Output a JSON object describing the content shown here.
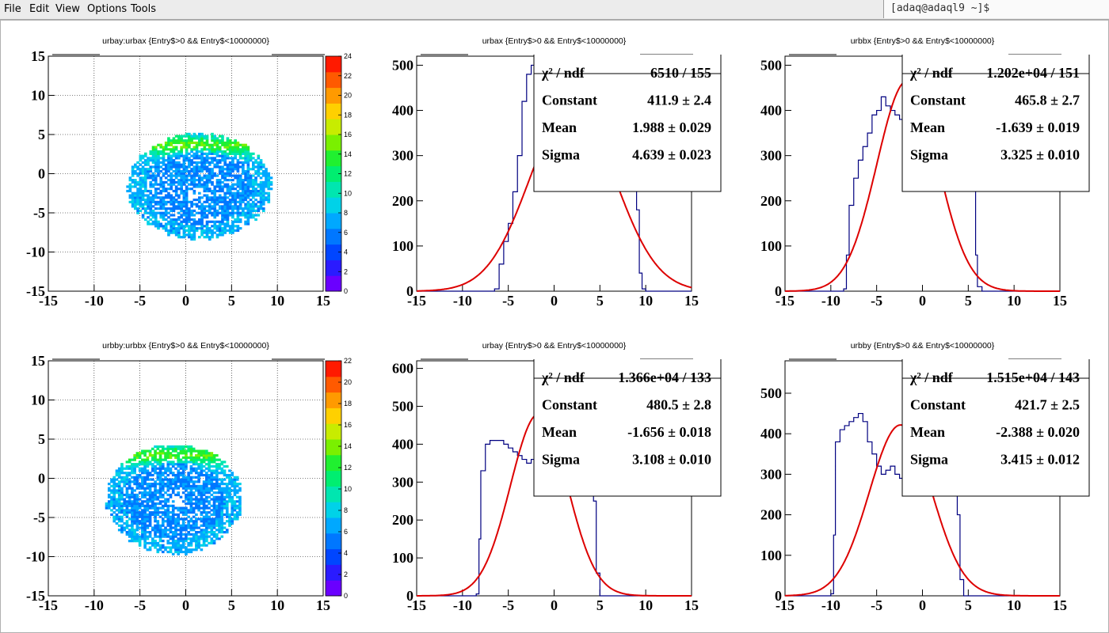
{
  "menubar": {
    "items": [
      {
        "label": "File",
        "accel": "F"
      },
      {
        "label": "Edit",
        "accel": "E"
      },
      {
        "label": "View",
        "accel": "V"
      },
      {
        "label": "Options",
        "accel": "O"
      },
      {
        "label": "Tools",
        "accel": "T"
      }
    ]
  },
  "terminal": {
    "prompt": "[adaq@adaql9 ~]$"
  },
  "colors": {
    "histogram_line": "#000080",
    "fit_line": "#dd0000",
    "palette": [
      "#6a00ff",
      "#2a1bff",
      "#0046ff",
      "#0077ff",
      "#00a8ff",
      "#00d2e8",
      "#00e6b0",
      "#00ee70",
      "#20f030",
      "#7af000",
      "#c8ec00",
      "#ffd000",
      "#ff9a00",
      "#ff5a00",
      "#ff1a00"
    ]
  },
  "chart_data": [
    {
      "type": "heatmap",
      "title": "urbay:urbax {Entry$>0 && Entry$<10000000}",
      "xlim": [
        -15,
        15
      ],
      "ylim": [
        -15,
        15
      ],
      "x_ticks": [
        -15,
        -10,
        -5,
        0,
        5,
        10,
        15
      ],
      "y_ticks": [
        -15,
        -10,
        -5,
        0,
        5,
        10,
        15
      ],
      "z_ticks": [
        0,
        2,
        4,
        6,
        8,
        10,
        12,
        14,
        16,
        18,
        20,
        22,
        24
      ],
      "zlim": [
        0,
        24
      ],
      "blob": {
        "x_range": [
          -6.5,
          9.2
        ],
        "y_range": [
          -8.5,
          5.0
        ],
        "hole_center": [
          1.0,
          -2.5
        ],
        "dense_arc_near_y": 3.5
      },
      "grid": true
    },
    {
      "type": "bar",
      "title": "urbax {Entry$>0 && Entry$<10000000}",
      "xlim": [
        -15,
        15
      ],
      "ylim": [
        0,
        520
      ],
      "x_ticks": [
        -15,
        -10,
        -5,
        0,
        5,
        10,
        15
      ],
      "y_ticks": [
        0,
        100,
        200,
        300,
        400,
        500
      ],
      "histogram": {
        "x": [
          -15,
          -14,
          -13,
          -12,
          -11,
          -10,
          -9,
          -8,
          -7,
          -6.5,
          -6,
          -5.5,
          -5,
          -4.5,
          -4,
          -3.5,
          -3,
          -2.5,
          -2,
          -1.5,
          -1,
          0,
          1,
          2,
          3,
          4,
          5,
          6,
          7,
          8,
          8.5,
          9,
          9.3,
          9.6,
          10,
          11,
          12,
          13,
          14,
          15
        ],
        "y": [
          0,
          0,
          0,
          0,
          0,
          0,
          0,
          0,
          0,
          5,
          60,
          110,
          150,
          220,
          300,
          420,
          480,
          500,
          470,
          430,
          400,
          360,
          330,
          310,
          320,
          330,
          330,
          340,
          340,
          330,
          300,
          180,
          40,
          5,
          0,
          0,
          0,
          0,
          0,
          0
        ]
      },
      "fit": {
        "function": "gaus",
        "constant": 411.9,
        "mean": 1.988,
        "sigma": 4.639
      },
      "stats": [
        {
          "label": "χ² / ndf",
          "value": "6510 / 155"
        },
        {
          "label": "Constant",
          "value": "411.9 ± 2.4"
        },
        {
          "label": "Mean",
          "value": "1.988 ± 0.029"
        },
        {
          "label": "Sigma",
          "value": "4.639 ± 0.023"
        }
      ],
      "grid": false
    },
    {
      "type": "bar",
      "title": "urbbx {Entry$>0 && Entry$<10000000}",
      "xlim": [
        -15,
        15
      ],
      "ylim": [
        0,
        520
      ],
      "x_ticks": [
        -15,
        -10,
        -5,
        0,
        5,
        10,
        15
      ],
      "y_ticks": [
        0,
        100,
        200,
        300,
        400,
        500
      ],
      "histogram": {
        "x": [
          -15,
          -13,
          -11,
          -10,
          -9,
          -8.6,
          -8.3,
          -8,
          -7.5,
          -7,
          -6.5,
          -6,
          -5.5,
          -5,
          -4.5,
          -4,
          -3.5,
          -3,
          -2.5,
          -2,
          -1.5,
          -1,
          -0.5,
          0,
          0.5,
          1,
          1.5,
          2,
          2.5,
          3,
          3.5,
          4,
          4.5,
          5,
          5.5,
          5.8,
          6,
          6.5,
          7,
          10,
          15
        ],
        "y": [
          0,
          0,
          0,
          0,
          0,
          5,
          80,
          190,
          250,
          290,
          320,
          350,
          390,
          400,
          430,
          410,
          400,
          390,
          380,
          360,
          350,
          360,
          370,
          380,
          390,
          400,
          410,
          420,
          420,
          410,
          400,
          390,
          380,
          360,
          250,
          80,
          10,
          0,
          0,
          0,
          0
        ]
      },
      "fit": {
        "function": "gaus",
        "constant": 465.8,
        "mean": -1.639,
        "sigma": 3.325
      },
      "stats": [
        {
          "label": "χ² / ndf",
          "value": "1.202e+04 / 151"
        },
        {
          "label": "Constant",
          "value": "465.8 ± 2.7"
        },
        {
          "label": "Mean",
          "value": "-1.639 ± 0.019"
        },
        {
          "label": "Sigma",
          "value": "3.325 ± 0.010"
        }
      ],
      "grid": false
    },
    {
      "type": "heatmap",
      "title": "urbby:urbbx {Entry$>0 && Entry$<10000000}",
      "xlim": [
        -15,
        15
      ],
      "ylim": [
        -15,
        15
      ],
      "x_ticks": [
        -15,
        -10,
        -5,
        0,
        5,
        10,
        15
      ],
      "y_ticks": [
        -15,
        -10,
        -5,
        0,
        5,
        10,
        15
      ],
      "z_ticks": [
        0,
        2,
        4,
        6,
        8,
        10,
        12,
        14,
        16,
        18,
        20,
        22
      ],
      "zlim": [
        0,
        22
      ],
      "blob": {
        "x_range": [
          -8.8,
          6.0
        ],
        "y_range": [
          -9.8,
          4.2
        ],
        "hole_center": [
          -1.0,
          -3.0
        ],
        "dense_arc_near_y": 2.8
      },
      "grid": true
    },
    {
      "type": "bar",
      "title": "urbay {Entry$>0 && Entry$<10000000}",
      "xlim": [
        -15,
        15
      ],
      "ylim": [
        0,
        620
      ],
      "x_ticks": [
        -15,
        -10,
        -5,
        0,
        5,
        10,
        15
      ],
      "y_ticks": [
        0,
        100,
        200,
        300,
        400,
        500,
        600
      ],
      "histogram": {
        "x": [
          -15,
          -12,
          -10,
          -9,
          -8.5,
          -8.2,
          -8,
          -7.5,
          -7,
          -6.5,
          -6,
          -5.5,
          -5,
          -4.5,
          -4,
          -3.5,
          -3,
          -2.5,
          -2,
          -1.5,
          -1,
          -0.5,
          0,
          0.5,
          1,
          1.5,
          2,
          2.5,
          3,
          3.5,
          4,
          4.3,
          4.6,
          5,
          6,
          10,
          15
        ],
        "y": [
          0,
          0,
          0,
          0,
          5,
          150,
          330,
          400,
          410,
          410,
          410,
          400,
          390,
          380,
          370,
          360,
          350,
          360,
          370,
          380,
          370,
          360,
          350,
          350,
          360,
          380,
          400,
          410,
          410,
          400,
          380,
          250,
          60,
          0,
          0,
          0,
          0
        ]
      },
      "fit": {
        "function": "gaus",
        "constant": 480.5,
        "mean": -1.656,
        "sigma": 3.108
      },
      "stats": [
        {
          "label": "χ² / ndf",
          "value": "1.366e+04 / 133"
        },
        {
          "label": "Constant",
          "value": "480.5 ± 2.8"
        },
        {
          "label": "Mean",
          "value": "-1.656 ± 0.018"
        },
        {
          "label": "Sigma",
          "value": "3.108 ± 0.010"
        }
      ],
      "grid": false
    },
    {
      "type": "bar",
      "title": "urbby {Entry$>0 && Entry$<10000000}",
      "xlim": [
        -15,
        15
      ],
      "ylim": [
        0,
        580
      ],
      "x_ticks": [
        -15,
        -10,
        -5,
        0,
        5,
        10,
        15
      ],
      "y_ticks": [
        0,
        100,
        200,
        300,
        400,
        500
      ],
      "histogram": {
        "x": [
          -15,
          -12,
          -10.5,
          -10,
          -9.7,
          -9.5,
          -9,
          -8.5,
          -8,
          -7.5,
          -7,
          -6.5,
          -6,
          -5.5,
          -5,
          -4.5,
          -4,
          -3.5,
          -3,
          -2.5,
          -2,
          -1.5,
          -1,
          -0.5,
          0,
          0.5,
          1,
          1.5,
          2,
          2.5,
          3,
          3.5,
          3.8,
          4.1,
          4.5,
          6,
          10,
          15
        ],
        "y": [
          0,
          0,
          0,
          5,
          150,
          380,
          410,
          420,
          430,
          440,
          450,
          430,
          380,
          350,
          320,
          300,
          310,
          320,
          300,
          290,
          300,
          310,
          300,
          310,
          320,
          340,
          360,
          390,
          410,
          420,
          410,
          400,
          200,
          40,
          0,
          0,
          0,
          0
        ]
      },
      "fit": {
        "function": "gaus",
        "constant": 421.7,
        "mean": -2.388,
        "sigma": 3.415
      },
      "stats": [
        {
          "label": "χ² / ndf",
          "value": "1.515e+04 / 143"
        },
        {
          "label": "Constant",
          "value": "421.7 ± 2.5"
        },
        {
          "label": "Mean",
          "value": "-2.388 ± 0.020"
        },
        {
          "label": "Sigma",
          "value": "3.415 ± 0.012"
        }
      ],
      "grid": false
    }
  ]
}
